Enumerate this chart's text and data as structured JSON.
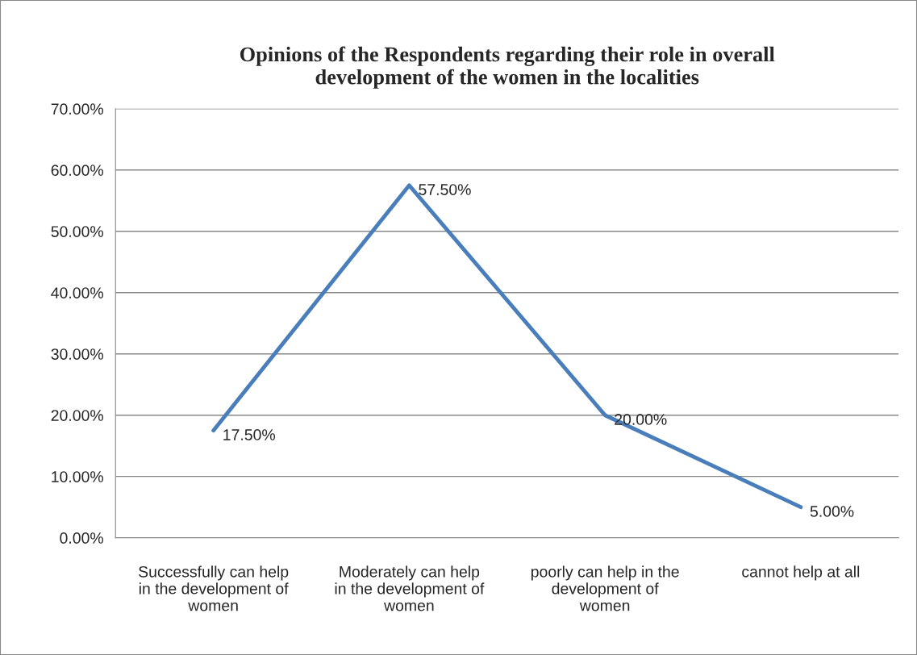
{
  "chart_data": {
    "type": "line",
    "title": "Opinions of the Respondents regarding their role in overall\ndevelopment of the women in the localities",
    "categories": [
      "Successfully can help\nin the development of\nwomen",
      "Moderately can help\nin the development of\nwomen",
      "poorly can help in the\ndevelopment of\nwomen",
      "cannot help at all"
    ],
    "series": [
      {
        "color": "#4a7ebb",
        "values": [
          17.5,
          57.5,
          20.0,
          5.0
        ],
        "value_labels": [
          "17.50%",
          "57.50%",
          "20.00%",
          "5.00%"
        ]
      }
    ],
    "ylim": [
      0,
      70
    ],
    "yticks": [
      {
        "value": 0,
        "label": "0.00%"
      },
      {
        "value": 10,
        "label": "10.00%"
      },
      {
        "value": 20,
        "label": "20.00%"
      },
      {
        "value": 30,
        "label": "30.00%"
      },
      {
        "value": 40,
        "label": "40.00%"
      },
      {
        "value": 50,
        "label": "50.00%"
      },
      {
        "value": 60,
        "label": "60.00%"
      },
      {
        "value": 70,
        "label": "70.00%"
      }
    ],
    "grid": "y",
    "marker": "none",
    "line_style": "solid"
  }
}
